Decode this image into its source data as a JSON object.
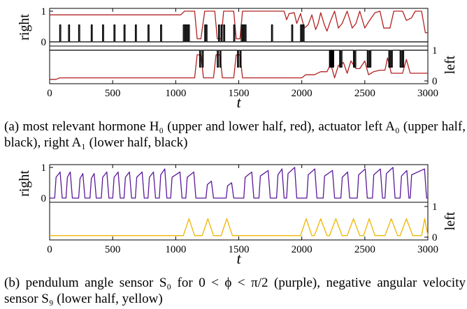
{
  "figure": {
    "captions": [
      "(a) most relevant hormone H₀ (upper and lower half, red), actuator left A₀ (upper half, black), right A₁ (lower half, black)",
      "(b) pendulum angle sensor S₀ for 0 < ϕ < π/2 (purple), negative angular velocity sensor S₉ (lower half, yellow)"
    ]
  },
  "colors": {
    "red": "#b22222",
    "black": "#000000",
    "purple": "#5a189a",
    "yellow": "#f0b400"
  },
  "chart_data": [
    {
      "type": "line",
      "panel": "a",
      "xlabel": "t",
      "xlim": [
        0,
        3000
      ],
      "x_ticks": [
        "0",
        "500",
        "1000",
        "1500",
        "2000",
        "2500",
        "3000"
      ],
      "upper_half": {
        "ylabel": "right",
        "ticks": [
          "1",
          "0"
        ]
      },
      "lower_half": {
        "ylabel": "left",
        "ticks": [
          "1",
          "0"
        ]
      },
      "series": [
        {
          "half": "upper",
          "color": "#b22222",
          "style": "smooth",
          "points": [
            [
              0,
              0.88
            ],
            [
              1040,
              0.88
            ],
            [
              1070,
              1.0
            ],
            [
              1150,
              1.0
            ],
            [
              1170,
              0.1
            ],
            [
              1200,
              0.1
            ],
            [
              1230,
              1.0
            ],
            [
              1310,
              1.0
            ],
            [
              1330,
              0.1
            ],
            [
              1360,
              0.1
            ],
            [
              1380,
              1.0
            ],
            [
              1460,
              1.0
            ],
            [
              1480,
              0.1
            ],
            [
              1510,
              0.1
            ],
            [
              1530,
              1.0
            ],
            [
              1860,
              1.0
            ],
            [
              1880,
              0.72
            ],
            [
              1900,
              0.92
            ],
            [
              1940,
              0.95
            ],
            [
              1960,
              0.6
            ],
            [
              1990,
              0.92
            ],
            [
              2020,
              0.45
            ],
            [
              2050,
              0.55
            ],
            [
              2080,
              0.88
            ],
            [
              2110,
              0.4
            ],
            [
              2130,
              0.6
            ],
            [
              2150,
              0.95
            ],
            [
              2180,
              0.55
            ],
            [
              2200,
              0.35
            ],
            [
              2230,
              0.7
            ],
            [
              2260,
              1.0
            ],
            [
              2290,
              0.45
            ],
            [
              2320,
              0.6
            ],
            [
              2360,
              1.0
            ],
            [
              2400,
              0.45
            ],
            [
              2430,
              0.6
            ],
            [
              2460,
              1.0
            ],
            [
              2500,
              0.45
            ],
            [
              2530,
              0.65
            ],
            [
              2580,
              0.95
            ],
            [
              2620,
              1.0
            ],
            [
              2650,
              0.45
            ],
            [
              2700,
              0.45
            ],
            [
              2730,
              1.0
            ],
            [
              2800,
              1.0
            ],
            [
              2830,
              0.7
            ],
            [
              2870,
              0.78
            ],
            [
              2900,
              1.0
            ],
            [
              2950,
              1.0
            ],
            [
              2980,
              0.3
            ],
            [
              3000,
              0.3
            ]
          ]
        },
        {
          "half": "upper",
          "color": "#000000",
          "style": "pulses",
          "baseline": 0,
          "height": 0.55,
          "pulses_at": [
            80,
            150,
            230,
            330,
            420,
            510,
            590,
            680,
            780,
            880,
            1060,
            1070,
            1080,
            1090,
            1100,
            1230,
            1240,
            1340,
            1360,
            1380,
            1460,
            1520,
            1530,
            1540,
            1550,
            1760,
            1920,
            1990,
            2000,
            2010
          ]
        },
        {
          "half": "lower",
          "color": "#b22222",
          "style": "smooth",
          "points": [
            [
              0,
              0.05
            ],
            [
              50,
              0.05
            ],
            [
              80,
              0.1
            ],
            [
              1100,
              0.1
            ],
            [
              1150,
              0.1
            ],
            [
              1170,
              0.85
            ],
            [
              1200,
              0.85
            ],
            [
              1220,
              0.1
            ],
            [
              1300,
              0.1
            ],
            [
              1320,
              0.85
            ],
            [
              1350,
              0.85
            ],
            [
              1370,
              0.1
            ],
            [
              1460,
              0.1
            ],
            [
              1480,
              0.85
            ],
            [
              1510,
              0.85
            ],
            [
              1530,
              0.1
            ],
            [
              2000,
              0.1
            ],
            [
              2030,
              0.2
            ],
            [
              2100,
              0.2
            ],
            [
              2150,
              0.3
            ],
            [
              2200,
              0.3
            ],
            [
              2230,
              0.55
            ],
            [
              2260,
              0.1
            ],
            [
              2290,
              0.5
            ],
            [
              2330,
              0.6
            ],
            [
              2360,
              0.25
            ],
            [
              2390,
              0.65
            ],
            [
              2430,
              0.4
            ],
            [
              2460,
              0.4
            ],
            [
              2500,
              0.65
            ],
            [
              2530,
              0.2
            ],
            [
              2570,
              0.3
            ],
            [
              2620,
              0.35
            ],
            [
              2660,
              0.35
            ],
            [
              2680,
              0.75
            ],
            [
              2710,
              0.25
            ],
            [
              2760,
              0.25
            ],
            [
              2800,
              0.25
            ],
            [
              2830,
              0.7
            ],
            [
              2860,
              0.25
            ],
            [
              2900,
              0.25
            ],
            [
              3000,
              0.25
            ]
          ]
        },
        {
          "half": "lower",
          "color": "#000000",
          "style": "pulses",
          "baseline": 1,
          "height": 0.55,
          "pulses_at": [
            1190,
            1210,
            1330,
            1350,
            1490,
            1510,
            2220,
            2225,
            2230,
            2235,
            2240,
            2245,
            2300,
            2310,
            2410,
            2420,
            2520,
            2530,
            2540,
            2690,
            2700,
            2710,
            2780,
            2790,
            2800
          ]
        }
      ]
    },
    {
      "type": "line",
      "panel": "b",
      "xlabel": "t",
      "xlim": [
        0,
        3000
      ],
      "x_ticks": [
        "0",
        "500",
        "1000",
        "1500",
        "2000",
        "2500",
        "3000"
      ],
      "upper_half": {
        "ylabel": "right",
        "ticks": [
          "1",
          "0"
        ]
      },
      "lower_half": {
        "ylabel": "left",
        "ticks": [
          "1",
          "0"
        ]
      },
      "series": [
        {
          "half": "upper",
          "color": "#5a189a",
          "style": "ramp-pulses",
          "segments": [
            [
              40,
              100,
              0.85
            ],
            [
              130,
              180,
              0.85
            ],
            [
              230,
              280,
              0.8
            ],
            [
              320,
              370,
              0.8
            ],
            [
              410,
              470,
              0.85
            ],
            [
              500,
              560,
              0.85
            ],
            [
              590,
              650,
              0.85
            ],
            [
              680,
              750,
              0.85
            ],
            [
              780,
              840,
              0.85
            ],
            [
              870,
              930,
              0.95
            ],
            [
              960,
              1050,
              0.85
            ],
            [
              1080,
              1160,
              0.85
            ],
            [
              1240,
              1300,
              0.55
            ],
            [
              1400,
              1460,
              0.5
            ],
            [
              1540,
              1620,
              0.85
            ],
            [
              1660,
              1750,
              0.9
            ],
            [
              1800,
              1860,
              0.95
            ],
            [
              1880,
              1960,
              1.0
            ],
            [
              2040,
              2120,
              0.95
            ],
            [
              2170,
              2260,
              0.9
            ],
            [
              2310,
              2380,
              0.85
            ],
            [
              2440,
              2520,
              0.95
            ],
            [
              2560,
              2640,
              0.95
            ],
            [
              2660,
              2740,
              1.0
            ],
            [
              2780,
              2850,
              0.9
            ],
            [
              2860,
              2990,
              0.95
            ]
          ]
        },
        {
          "half": "lower",
          "color": "#f0b400",
          "style": "bumps",
          "baseline": 0.05,
          "height": 0.55,
          "bumps": [
            [
              1060,
              1150
            ],
            [
              1210,
              1300
            ],
            [
              1360,
              1450
            ],
            [
              1990,
              2080
            ],
            [
              2100,
              2200
            ],
            [
              2220,
              2320
            ],
            [
              2360,
              2460
            ],
            [
              2490,
              2580
            ],
            [
              2660,
              2760
            ],
            [
              2780,
              2880
            ],
            [
              2950,
              3000
            ]
          ]
        }
      ]
    }
  ]
}
